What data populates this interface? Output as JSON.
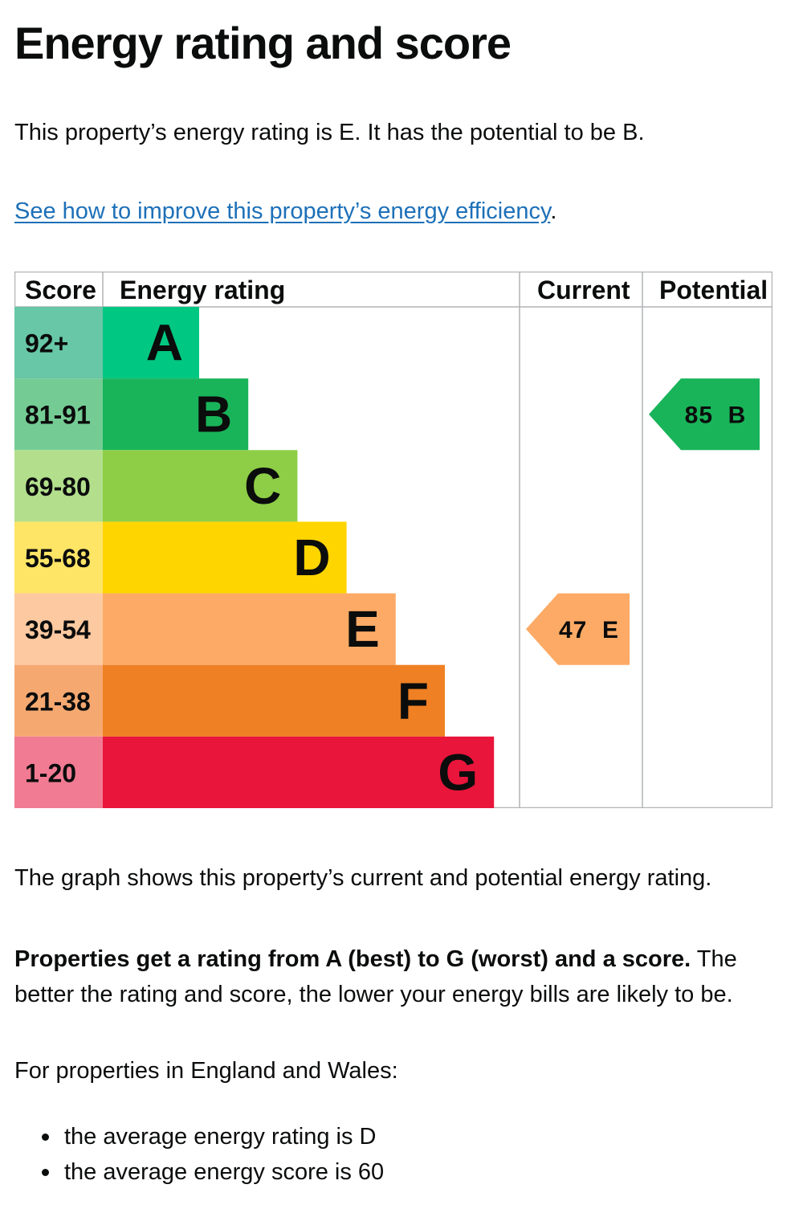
{
  "page": {
    "title": "Energy rating and score",
    "intro": "This property’s energy rating is E. It has the potential to be B.",
    "improve_link": "See how to improve this property’s energy efficiency",
    "improve_suffix": ".",
    "caption": "The graph shows this property’s current and potential energy rating.",
    "rating_info_bold": "Properties get a rating from A (best) to G (worst) and a score.",
    "rating_info_rest": " The better the rating and score, the lower your energy bills are likely to be.",
    "region": "For properties in England and Wales:",
    "averages": [
      "the average energy rating is D",
      "the average energy score is 60"
    ]
  },
  "chart_data": {
    "type": "table",
    "headers": {
      "score": "Score",
      "rating": "Energy rating",
      "current": "Current",
      "potential": "Potential"
    },
    "bands": [
      {
        "score": "92+",
        "letter": "A",
        "color": "#00c781",
        "score_color": "#67c7a7"
      },
      {
        "score": "81-91",
        "letter": "B",
        "color": "#19b459",
        "score_color": "#74cc94"
      },
      {
        "score": "69-80",
        "letter": "C",
        "color": "#8dce46",
        "score_color": "#b3df8c"
      },
      {
        "score": "55-68",
        "letter": "D",
        "color": "#ffd500",
        "score_color": "#ffe566"
      },
      {
        "score": "39-54",
        "letter": "E",
        "color": "#fcaa65",
        "score_color": "#fdc9a0"
      },
      {
        "score": "21-38",
        "letter": "F",
        "color": "#ef8023",
        "score_color": "#f5a971"
      },
      {
        "score": "1-20",
        "letter": "G",
        "color": "#e9153b",
        "score_color": "#f07b92"
      }
    ],
    "current": {
      "score": 47,
      "letter": "E",
      "label": "47 E",
      "color": "#fcaa65"
    },
    "potential": {
      "score": 85,
      "letter": "B",
      "label": "85 B",
      "color": "#19b459"
    }
  }
}
